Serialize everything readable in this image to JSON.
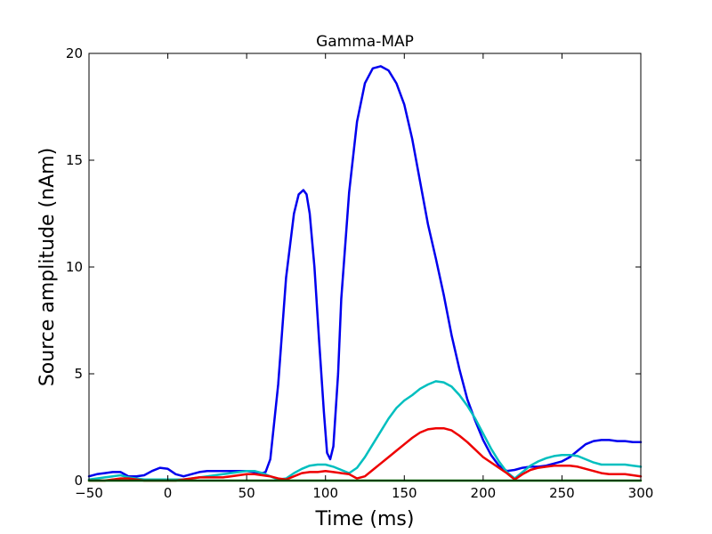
{
  "chart_data": {
    "type": "line",
    "title": "Gamma-MAP",
    "xlabel": "Time (ms)",
    "ylabel": "Source amplitude (nAm)",
    "xlim": [
      -50,
      300
    ],
    "ylim": [
      0,
      20
    ],
    "xticks": [
      -50,
      0,
      50,
      100,
      150,
      200,
      250,
      300
    ],
    "yticks": [
      0,
      5,
      10,
      15,
      20
    ],
    "grid": false,
    "series": [
      {
        "color": "#0000ee",
        "x": [
          -50,
          -45,
          -40,
          -35,
          -30,
          -25,
          -20,
          -15,
          -10,
          -5,
          0,
          5,
          10,
          15,
          20,
          25,
          30,
          35,
          40,
          45,
          50,
          55,
          60,
          62,
          65,
          70,
          75,
          80,
          83,
          86,
          88,
          90,
          93,
          96,
          99,
          101,
          103,
          105,
          108,
          110,
          115,
          120,
          125,
          130,
          135,
          140,
          145,
          150,
          155,
          160,
          165,
          170,
          175,
          180,
          185,
          190,
          195,
          200,
          205,
          210,
          215,
          220,
          225,
          230,
          235,
          240,
          245,
          250,
          255,
          260,
          265,
          270,
          275,
          280,
          285,
          290,
          295,
          300
        ],
        "y": [
          0.2,
          0.3,
          0.35,
          0.4,
          0.4,
          0.2,
          0.2,
          0.25,
          0.45,
          0.6,
          0.55,
          0.3,
          0.2,
          0.3,
          0.4,
          0.45,
          0.45,
          0.45,
          0.45,
          0.45,
          0.45,
          0.4,
          0.35,
          0.4,
          1.0,
          4.5,
          9.5,
          12.5,
          13.4,
          13.6,
          13.4,
          12.5,
          10.0,
          6.5,
          3.2,
          1.3,
          1.0,
          1.6,
          5.0,
          8.5,
          13.5,
          16.8,
          18.6,
          19.3,
          19.4,
          19.2,
          18.6,
          17.6,
          16.0,
          14.0,
          12.0,
          10.4,
          8.7,
          6.8,
          5.2,
          3.8,
          2.8,
          1.9,
          1.2,
          0.7,
          0.45,
          0.5,
          0.6,
          0.65,
          0.65,
          0.7,
          0.8,
          0.9,
          1.1,
          1.4,
          1.7,
          1.85,
          1.9,
          1.9,
          1.85,
          1.85,
          1.8,
          1.8
        ]
      },
      {
        "color": "#00bfbf",
        "x": [
          -50,
          -45,
          -40,
          -35,
          -30,
          -25,
          -20,
          -15,
          -10,
          -5,
          0,
          5,
          10,
          15,
          20,
          25,
          30,
          35,
          40,
          45,
          50,
          55,
          60,
          65,
          70,
          75,
          80,
          85,
          90,
          95,
          100,
          105,
          110,
          115,
          120,
          125,
          130,
          135,
          140,
          145,
          150,
          155,
          160,
          165,
          170,
          175,
          180,
          185,
          190,
          195,
          200,
          205,
          210,
          215,
          220,
          225,
          230,
          235,
          240,
          245,
          250,
          255,
          260,
          265,
          270,
          275,
          280,
          285,
          290,
          295,
          300
        ],
        "y": [
          0.05,
          0.1,
          0.15,
          0.2,
          0.25,
          0.15,
          0.1,
          0.05,
          0.05,
          0.05,
          0.05,
          0.05,
          0.05,
          0.1,
          0.15,
          0.2,
          0.25,
          0.3,
          0.35,
          0.4,
          0.45,
          0.45,
          0.35,
          0.2,
          0.05,
          0.1,
          0.35,
          0.55,
          0.7,
          0.75,
          0.75,
          0.65,
          0.5,
          0.35,
          0.6,
          1.1,
          1.7,
          2.3,
          2.9,
          3.4,
          3.75,
          4.0,
          4.3,
          4.5,
          4.65,
          4.6,
          4.4,
          4.0,
          3.5,
          2.9,
          2.2,
          1.5,
          0.9,
          0.4,
          0.1,
          0.4,
          0.7,
          0.9,
          1.05,
          1.15,
          1.2,
          1.2,
          1.15,
          1.0,
          0.85,
          0.75,
          0.75,
          0.75,
          0.75,
          0.7,
          0.65
        ]
      },
      {
        "color": "#ee0000",
        "x": [
          -50,
          -45,
          -40,
          -35,
          -30,
          -25,
          -20,
          -15,
          -10,
          -5,
          0,
          5,
          10,
          15,
          20,
          25,
          30,
          35,
          40,
          45,
          50,
          55,
          60,
          65,
          70,
          75,
          80,
          85,
          90,
          95,
          100,
          105,
          110,
          115,
          120,
          125,
          130,
          135,
          140,
          145,
          150,
          155,
          160,
          165,
          170,
          175,
          180,
          185,
          190,
          195,
          200,
          205,
          210,
          215,
          220,
          225,
          230,
          235,
          240,
          245,
          250,
          255,
          260,
          265,
          270,
          275,
          280,
          285,
          290,
          295,
          300
        ],
        "y": [
          0.0,
          0.0,
          0.0,
          0.05,
          0.1,
          0.1,
          0.05,
          0.0,
          0.0,
          0.0,
          0.0,
          0.0,
          0.05,
          0.1,
          0.15,
          0.15,
          0.15,
          0.15,
          0.2,
          0.25,
          0.3,
          0.3,
          0.25,
          0.2,
          0.1,
          0.05,
          0.2,
          0.35,
          0.4,
          0.4,
          0.45,
          0.4,
          0.35,
          0.3,
          0.1,
          0.2,
          0.5,
          0.8,
          1.1,
          1.4,
          1.7,
          2.0,
          2.25,
          2.4,
          2.45,
          2.45,
          2.35,
          2.1,
          1.8,
          1.45,
          1.1,
          0.85,
          0.6,
          0.35,
          0.05,
          0.3,
          0.5,
          0.6,
          0.65,
          0.7,
          0.7,
          0.7,
          0.65,
          0.55,
          0.45,
          0.35,
          0.3,
          0.3,
          0.3,
          0.25,
          0.2
        ]
      },
      {
        "color": "#008000",
        "x": [
          -50,
          300
        ],
        "y": [
          0.0,
          0.0
        ]
      }
    ]
  }
}
